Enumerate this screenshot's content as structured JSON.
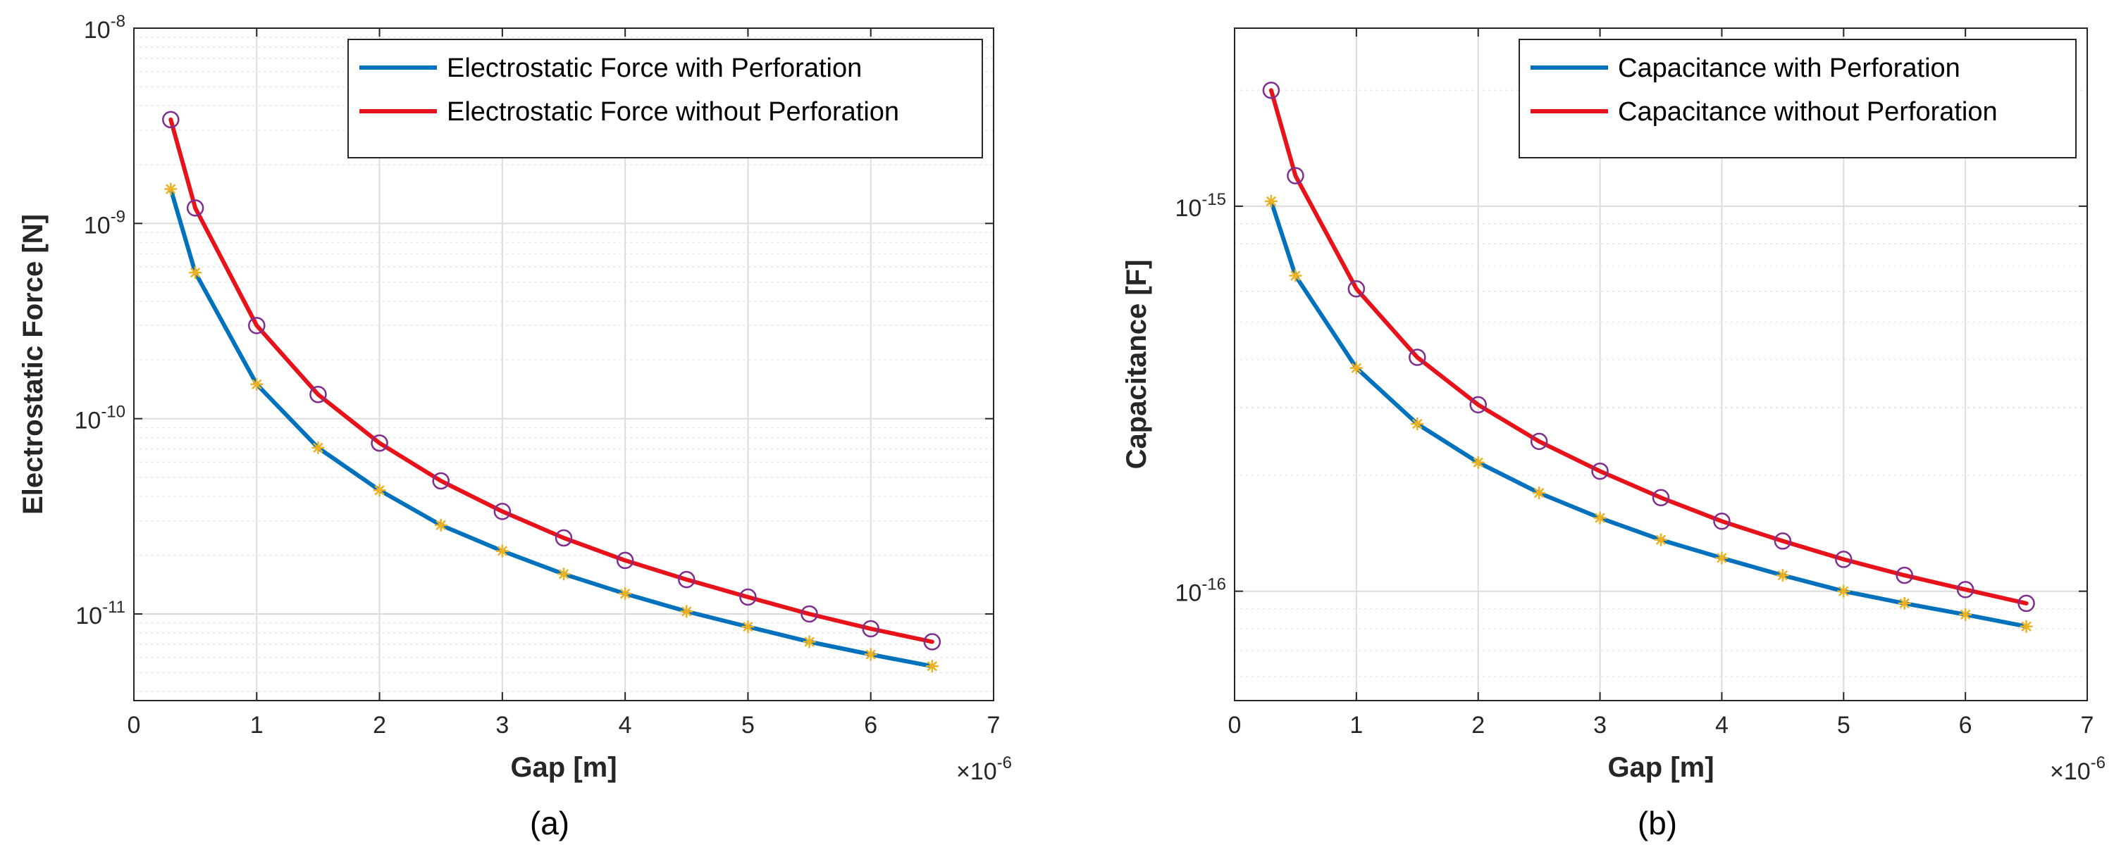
{
  "colors": {
    "with_perforation": "#0072BD",
    "without_perforation": "#E8131A",
    "star_marker": "#EDB120",
    "circle_marker": "#7E2F8E",
    "axis": "#262626",
    "major_grid": "#dcdcdc",
    "minor_grid": "#e6e6e6"
  },
  "chart_data": [
    {
      "type": "line",
      "caption": "(a)",
      "xlabel": "Gap [m]",
      "ylabel": "Electrostatic Force [N]",
      "x_multiplier_label": "×10",
      "x_multiplier_exp": "-6",
      "x_ticks": [
        "0",
        "1",
        "2",
        "3",
        "4",
        "5",
        "6",
        "7"
      ],
      "xlim": [
        0,
        7
      ],
      "yscale": "log",
      "ylim": [
        3.6e-12,
        1e-08
      ],
      "y_ticks": [
        {
          "value": 1e-08,
          "base": "10",
          "exp": "-8"
        },
        {
          "value": 1e-09,
          "base": "10",
          "exp": "-9"
        },
        {
          "value": 1e-10,
          "base": "10",
          "exp": "-10"
        },
        {
          "value": 1e-11,
          "base": "10",
          "exp": "-11"
        }
      ],
      "legend_position": "top-right",
      "x": [
        0.3,
        0.5,
        1,
        1.5,
        2,
        2.5,
        3,
        3.5,
        4,
        4.5,
        5,
        5.5,
        6,
        6.5
      ],
      "series": [
        {
          "name": "Electrostatic Force with Perforation",
          "color_key": "with_perforation",
          "marker": "star",
          "values": [
            1.5e-09,
            5.6e-10,
            1.5e-10,
            7.1e-11,
            4.3e-11,
            2.85e-11,
            2.1e-11,
            1.6e-11,
            1.27e-11,
            1.03e-11,
            8.6e-12,
            7.2e-12,
            6.2e-12,
            5.4e-12
          ]
        },
        {
          "name": "Electrostatic Force without Perforation",
          "color_key": "without_perforation",
          "marker": "circle",
          "values": [
            3.4e-09,
            1.2e-09,
            3e-10,
            1.33e-10,
            7.5e-11,
            4.8e-11,
            3.35e-11,
            2.45e-11,
            1.88e-11,
            1.5e-11,
            1.22e-11,
            1e-11,
            8.4e-12,
            7.2e-12
          ]
        }
      ]
    },
    {
      "type": "line",
      "caption": "(b)",
      "xlabel": "Gap [m]",
      "ylabel": "Capacitance [F]",
      "x_multiplier_label": "×10",
      "x_multiplier_exp": "-6",
      "x_ticks": [
        "0",
        "1",
        "2",
        "3",
        "4",
        "5",
        "6",
        "7"
      ],
      "xlim": [
        0,
        7
      ],
      "yscale": "log",
      "ylim": [
        5.2e-17,
        2.9e-15
      ],
      "y_ticks": [
        {
          "value": 1e-15,
          "base": "10",
          "exp": "-15"
        },
        {
          "value": 1e-16,
          "base": "10",
          "exp": "-16"
        }
      ],
      "legend_position": "top-right",
      "x": [
        0.3,
        0.5,
        1,
        1.5,
        2,
        2.5,
        3,
        3.5,
        4,
        4.5,
        5,
        5.5,
        6,
        6.5
      ],
      "series": [
        {
          "name": "Capacitance with Perforation",
          "color_key": "with_perforation",
          "marker": "star",
          "values": [
            1.03e-15,
            6.6e-16,
            3.8e-16,
            2.72e-16,
            2.16e-16,
            1.8e-16,
            1.55e-16,
            1.36e-16,
            1.22e-16,
            1.1e-16,
            1e-16,
            9.3e-17,
            8.7e-17,
            8.1e-17
          ]
        },
        {
          "name": "Capacitance without Perforation",
          "color_key": "without_perforation",
          "marker": "circle",
          "values": [
            2e-15,
            1.2e-15,
            6.1e-16,
            4.05e-16,
            3.05e-16,
            2.45e-16,
            2.05e-16,
            1.75e-16,
            1.52e-16,
            1.35e-16,
            1.21e-16,
            1.1e-16,
            1.01e-16,
            9.3e-17
          ]
        }
      ]
    }
  ]
}
